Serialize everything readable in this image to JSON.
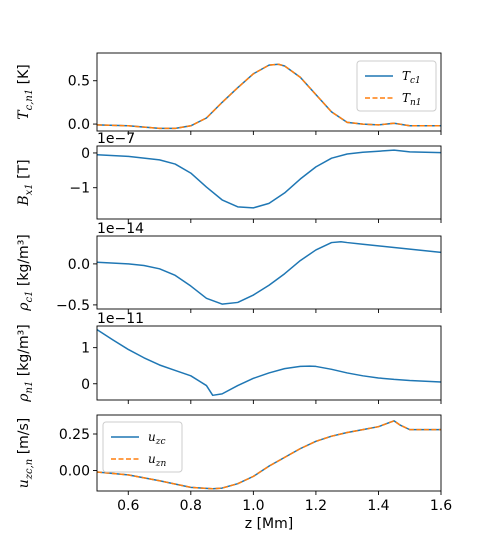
{
  "chart_data": {
    "type": "line",
    "xlabel": "z [Mm]",
    "xlim": [
      0.5,
      1.6
    ],
    "xticks": [
      "0.6",
      "0.8",
      "1.0",
      "1.2",
      "1.4",
      "1.6"
    ],
    "xtick_values": [
      0.6,
      0.8,
      1.0,
      1.2,
      1.4,
      1.6
    ],
    "colors": {
      "blue": "#1f77b4",
      "orange": "#ff7f0e"
    },
    "panels": [
      {
        "ylabel": "T_{c,n1} [K]",
        "ylabel_main": "T",
        "ylabel_sub": "c,n1",
        "ylabel_unit": " [K]",
        "offset_text": "",
        "ylim": [
          -0.08,
          0.82
        ],
        "yticks": [
          "0.0",
          "0.5"
        ],
        "ytick_values": [
          0.0,
          0.5
        ],
        "legend": {
          "placement": "right",
          "entries": [
            {
              "label": "T_c1",
              "main": "T",
              "sub": "c1",
              "style": "solid",
              "color": "#1f77b4"
            },
            {
              "label": "T_n1",
              "main": "T",
              "sub": "n1",
              "style": "dashed",
              "color": "#ff7f0e"
            }
          ]
        },
        "series": [
          {
            "style": "solid",
            "color": "#1f77b4",
            "x": [
              0.5,
              0.6,
              0.7,
              0.75,
              0.8,
              0.85,
              0.9,
              0.95,
              1.0,
              1.05,
              1.08,
              1.1,
              1.15,
              1.2,
              1.25,
              1.3,
              1.35,
              1.4,
              1.45,
              1.5,
              1.55,
              1.6
            ],
            "y": [
              -0.01,
              -0.02,
              -0.05,
              -0.05,
              -0.02,
              0.07,
              0.25,
              0.42,
              0.58,
              0.68,
              0.69,
              0.67,
              0.54,
              0.34,
              0.14,
              0.02,
              0.0,
              -0.01,
              0.01,
              -0.02,
              -0.02,
              -0.02
            ]
          },
          {
            "style": "dashed",
            "color": "#ff7f0e",
            "x": [
              0.5,
              0.6,
              0.7,
              0.75,
              0.8,
              0.85,
              0.9,
              0.95,
              1.0,
              1.05,
              1.08,
              1.1,
              1.15,
              1.2,
              1.25,
              1.3,
              1.35,
              1.4,
              1.45,
              1.5,
              1.55,
              1.6
            ],
            "y": [
              -0.01,
              -0.02,
              -0.05,
              -0.05,
              -0.02,
              0.07,
              0.25,
              0.42,
              0.58,
              0.68,
              0.69,
              0.67,
              0.54,
              0.34,
              0.14,
              0.02,
              0.0,
              -0.01,
              0.01,
              -0.02,
              -0.02,
              -0.02
            ]
          }
        ]
      },
      {
        "ylabel": "B_{x1} [T]",
        "ylabel_main": "B",
        "ylabel_sub": "x1",
        "ylabel_unit": " [T]",
        "offset_text": "1e−7",
        "ylim": [
          -1.9,
          0.2
        ],
        "yticks": [
          "0",
          "−1"
        ],
        "ytick_values": [
          0,
          -1
        ],
        "legend": null,
        "series": [
          {
            "style": "solid",
            "color": "#1f77b4",
            "x": [
              0.5,
              0.6,
              0.7,
              0.75,
              0.8,
              0.85,
              0.9,
              0.95,
              1.0,
              1.05,
              1.1,
              1.15,
              1.2,
              1.25,
              1.3,
              1.35,
              1.4,
              1.45,
              1.5,
              1.55,
              1.6
            ],
            "y": [
              -0.05,
              -0.1,
              -0.2,
              -0.32,
              -0.58,
              -0.98,
              -1.35,
              -1.55,
              -1.58,
              -1.45,
              -1.15,
              -0.75,
              -0.4,
              -0.15,
              -0.03,
              0.02,
              0.05,
              0.08,
              0.03,
              0.02,
              0.01
            ]
          }
        ]
      },
      {
        "ylabel": "ρ_{c1} [kg/m^3]",
        "ylabel_main": "ρ",
        "ylabel_sub": "c1",
        "ylabel_unit": " [kg/m³]",
        "offset_text": "1e−14",
        "ylim": [
          -0.55,
          0.34
        ],
        "yticks": [
          "0.0",
          "−0.5"
        ],
        "ytick_values": [
          0.0,
          -0.5
        ],
        "legend": null,
        "series": [
          {
            "style": "solid",
            "color": "#1f77b4",
            "x": [
              0.5,
              0.6,
              0.65,
              0.7,
              0.75,
              0.8,
              0.85,
              0.9,
              0.95,
              1.0,
              1.05,
              1.1,
              1.15,
              1.2,
              1.25,
              1.28,
              1.3,
              1.35,
              1.4,
              1.45,
              1.5,
              1.55,
              1.6
            ],
            "y": [
              0.02,
              0.0,
              -0.02,
              -0.06,
              -0.14,
              -0.27,
              -0.42,
              -0.49,
              -0.47,
              -0.38,
              -0.26,
              -0.12,
              0.04,
              0.17,
              0.26,
              0.27,
              0.26,
              0.24,
              0.22,
              0.2,
              0.18,
              0.16,
              0.14
            ]
          }
        ]
      },
      {
        "ylabel": "ρ_{n1} [kg/m^3]",
        "ylabel_main": "ρ",
        "ylabel_sub": "n1",
        "ylabel_unit": " [kg/m³]",
        "offset_text": "1e−11",
        "ylim": [
          -0.45,
          1.6
        ],
        "yticks": [
          "1",
          "0"
        ],
        "ytick_values": [
          1,
          0
        ],
        "legend": null,
        "series": [
          {
            "style": "solid",
            "color": "#1f77b4",
            "x": [
              0.5,
              0.55,
              0.6,
              0.65,
              0.7,
              0.75,
              0.8,
              0.85,
              0.87,
              0.9,
              0.95,
              1.0,
              1.05,
              1.1,
              1.15,
              1.18,
              1.2,
              1.25,
              1.3,
              1.35,
              1.4,
              1.45,
              1.5,
              1.55,
              1.6
            ],
            "y": [
              1.5,
              1.22,
              0.95,
              0.72,
              0.52,
              0.37,
              0.22,
              -0.05,
              -0.32,
              -0.28,
              -0.05,
              0.15,
              0.3,
              0.42,
              0.48,
              0.49,
              0.48,
              0.4,
              0.3,
              0.22,
              0.16,
              0.12,
              0.09,
              0.07,
              0.05
            ]
          }
        ]
      },
      {
        "ylabel": "u_{zc,n} [m/s]",
        "ylabel_main": "u",
        "ylabel_sub": "zc,n",
        "ylabel_unit": " [m/s]",
        "offset_text": "",
        "ylim": [
          -0.14,
          0.38
        ],
        "yticks": [
          "0.25",
          "0.00"
        ],
        "ytick_values": [
          0.25,
          0.0
        ],
        "legend": {
          "placement": "upper left",
          "entries": [
            {
              "label": "u_zc",
              "main": "u",
              "sub": "zc",
              "style": "solid",
              "color": "#1f77b4"
            },
            {
              "label": "u_zn",
              "main": "u",
              "sub": "zn",
              "style": "dashed",
              "color": "#ff7f0e"
            }
          ]
        },
        "series": [
          {
            "style": "solid",
            "color": "#1f77b4",
            "x": [
              0.5,
              0.6,
              0.7,
              0.8,
              0.87,
              0.9,
              0.95,
              1.0,
              1.05,
              1.1,
              1.15,
              1.2,
              1.25,
              1.3,
              1.35,
              1.4,
              1.45,
              1.47,
              1.5,
              1.55,
              1.6
            ],
            "y": [
              -0.01,
              -0.03,
              -0.07,
              -0.115,
              -0.125,
              -0.12,
              -0.09,
              -0.04,
              0.03,
              0.09,
              0.15,
              0.2,
              0.235,
              0.26,
              0.28,
              0.3,
              0.34,
              0.31,
              0.28,
              0.28,
              0.28
            ]
          },
          {
            "style": "dashed",
            "color": "#ff7f0e",
            "x": [
              0.5,
              0.6,
              0.7,
              0.8,
              0.87,
              0.9,
              0.95,
              1.0,
              1.05,
              1.1,
              1.15,
              1.2,
              1.25,
              1.3,
              1.35,
              1.4,
              1.45,
              1.47,
              1.5,
              1.55,
              1.6
            ],
            "y": [
              -0.01,
              -0.03,
              -0.07,
              -0.115,
              -0.125,
              -0.12,
              -0.09,
              -0.04,
              0.03,
              0.09,
              0.15,
              0.2,
              0.235,
              0.26,
              0.28,
              0.3,
              0.34,
              0.31,
              0.28,
              0.28,
              0.28
            ]
          }
        ]
      }
    ]
  }
}
